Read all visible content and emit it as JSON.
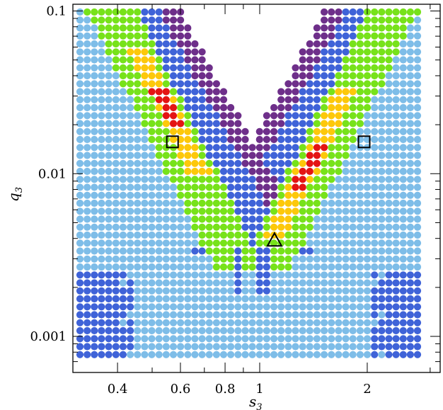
{
  "chart_data": {
    "type": "scatter",
    "title": "",
    "xlabel": {
      "main": "s",
      "sub": "3"
    },
    "ylabel": {
      "main": "q",
      "sub": "3"
    },
    "x_scale": "log",
    "y_scale": "log",
    "xlim": [
      0.3,
      3.2
    ],
    "ylim": [
      0.0006,
      0.11
    ],
    "x_ticks": [
      {
        "value": 0.4,
        "label": "0.4"
      },
      {
        "value": 0.6,
        "label": "0.6"
      },
      {
        "value": 0.8,
        "label": "0.8"
      },
      {
        "value": 1,
        "label": "1"
      },
      {
        "value": 2,
        "label": "2"
      }
    ],
    "y_ticks": [
      {
        "value": 0.1,
        "label": "0.1"
      },
      {
        "value": 0.01,
        "label": "0.01"
      },
      {
        "value": 0.001,
        "label": "0.001"
      }
    ],
    "grid": false,
    "grid_cols": 48,
    "grid_rows": 44,
    "class_colors": {
      "light": "#7ebde8",
      "blue": "#3f63d8",
      "purple": "#6e2f8a",
      "green": "#77e21a",
      "yellow": "#fdc80a",
      "red": "#e41414"
    },
    "markers": [
      {
        "shape": "square",
        "x": 0.57,
        "y": 0.0157
      },
      {
        "shape": "square",
        "x": 1.96,
        "y": 0.0157
      },
      {
        "shape": "triangle",
        "x": 1.1,
        "y": 0.0039
      }
    ]
  }
}
